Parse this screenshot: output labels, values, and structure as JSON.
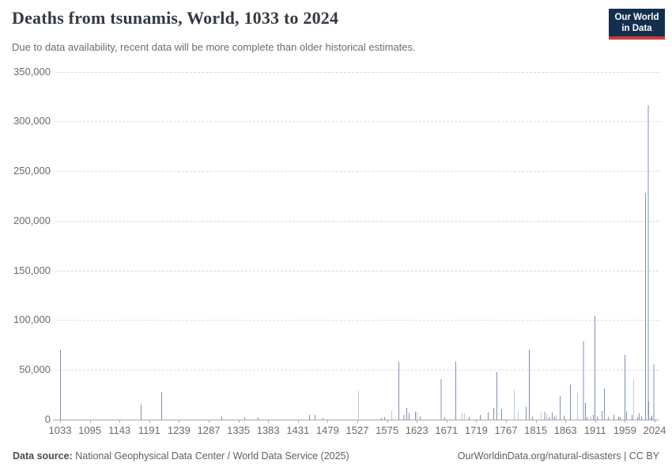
{
  "header": {
    "title": "Deaths from tsunamis, World, 1033 to 2024",
    "subtitle": "Due to data availability, recent data will be more complete than older historical estimates.",
    "logo_line1": "Our World",
    "logo_line2": "in Data"
  },
  "footer": {
    "source_label": "Data source:",
    "source_rest": "National Geophysical Data Center / World Data Service (2025)",
    "credit": "OurWorldinData.org/natural-disasters | CC BY"
  },
  "colors": {
    "spike_dark": "#7b91b2",
    "spike_light": "#bdc9dc",
    "logo_bg": "#12304e",
    "logo_red": "#cf3c3c",
    "grid": "#dcdcdc",
    "axis": "#a7a7a7",
    "label_gray": "#6b6b6b"
  },
  "chart_data": {
    "type": "bar",
    "title": "Deaths from tsunamis, World, 1033 to 2024",
    "subtitle": "Due to data availability, recent data will be more complete than older historical estimates.",
    "xlabel": "",
    "ylabel": "",
    "ylim": [
      0,
      350000
    ],
    "grid": "horizontal-dashed",
    "legend": "none",
    "y_ticks": [
      {
        "value": 0,
        "label": "0"
      },
      {
        "value": 50000,
        "label": "50,000"
      },
      {
        "value": 100000,
        "label": "100,000"
      },
      {
        "value": 150000,
        "label": "150,000"
      },
      {
        "value": 200000,
        "label": "200,000"
      },
      {
        "value": 250000,
        "label": "250,000"
      },
      {
        "value": 300000,
        "label": "300,000"
      },
      {
        "value": 350000,
        "label": "350,000"
      }
    ],
    "x_ticks": [
      1033,
      1095,
      1143,
      1191,
      1239,
      1287,
      1335,
      1383,
      1431,
      1479,
      1527,
      1575,
      1623,
      1671,
      1719,
      1767,
      1815,
      1863,
      1911,
      1959,
      2024
    ],
    "series": [
      {
        "year": 1033,
        "deaths": 70000,
        "tone": "dark",
        "w": 1
      },
      {
        "year": 1178,
        "deaths": 15000,
        "tone": "dark",
        "w": 1
      },
      {
        "year": 1211,
        "deaths": 28000,
        "tone": "dark",
        "w": 1
      },
      {
        "year": 1308,
        "deaths": 3000,
        "tone": "dark",
        "w": 1
      },
      {
        "year": 1345,
        "deaths": 2600,
        "tone": "dark",
        "w": 1
      },
      {
        "year": 1367,
        "deaths": 2000,
        "tone": "dark",
        "w": 1
      },
      {
        "year": 1450,
        "deaths": 5000,
        "tone": "dark",
        "w": 1
      },
      {
        "year": 1459,
        "deaths": 4500,
        "tone": "dark",
        "w": 1
      },
      {
        "year": 1471,
        "deaths": 1500,
        "tone": "dark",
        "w": 1
      },
      {
        "year": 1529,
        "deaths": 29000,
        "tone": "light",
        "w": 1
      },
      {
        "year": 1566,
        "deaths": 1500,
        "tone": "dark",
        "w": 1
      },
      {
        "year": 1571,
        "deaths": 2000,
        "tone": "dark",
        "w": 1
      },
      {
        "year": 1582,
        "deaths": 9000,
        "tone": "light",
        "w": 1
      },
      {
        "year": 1594,
        "deaths": 58000,
        "tone": "dark",
        "w": 1
      },
      {
        "year": 1602,
        "deaths": 5000,
        "tone": "light",
        "w": 2
      },
      {
        "year": 1607,
        "deaths": 12000,
        "tone": "dark",
        "w": 1
      },
      {
        "year": 1610,
        "deaths": 6600,
        "tone": "dark",
        "w": 1
      },
      {
        "year": 1621,
        "deaths": 8000,
        "tone": "dark",
        "w": 1
      },
      {
        "year": 1624,
        "deaths": 8000,
        "tone": "light",
        "w": 1
      },
      {
        "year": 1628,
        "deaths": 3200,
        "tone": "dark",
        "w": 1
      },
      {
        "year": 1662,
        "deaths": 41000,
        "tone": "light",
        "w": 2
      },
      {
        "year": 1668,
        "deaths": 2000,
        "tone": "dark",
        "w": 1
      },
      {
        "year": 1686,
        "deaths": 58000,
        "tone": "dark",
        "w": 1
      },
      {
        "year": 1696,
        "deaths": 6000,
        "tone": "light",
        "w": 1
      },
      {
        "year": 1700,
        "deaths": 6000,
        "tone": "light",
        "w": 1
      },
      {
        "year": 1708,
        "deaths": 2000,
        "tone": "dark",
        "w": 1
      },
      {
        "year": 1726,
        "deaths": 5000,
        "tone": "dark",
        "w": 1
      },
      {
        "year": 1738,
        "deaths": 7000,
        "tone": "dark",
        "w": 1
      },
      {
        "year": 1747,
        "deaths": 12000,
        "tone": "dark",
        "w": 1
      },
      {
        "year": 1752,
        "deaths": 48000,
        "tone": "dark",
        "w": 1
      },
      {
        "year": 1760,
        "deaths": 10000,
        "tone": "dark",
        "w": 1
      },
      {
        "year": 1780,
        "deaths": 30000,
        "tone": "light",
        "w": 1
      },
      {
        "year": 1787,
        "deaths": 8000,
        "tone": "light",
        "w": 1
      },
      {
        "year": 1799,
        "deaths": 13000,
        "tone": "dark",
        "w": 1
      },
      {
        "year": 1805,
        "deaths": 70000,
        "tone": "dark",
        "w": 1
      },
      {
        "year": 1810,
        "deaths": 3000,
        "tone": "dark",
        "w": 1
      },
      {
        "year": 1824,
        "deaths": 7000,
        "tone": "light",
        "w": 1
      },
      {
        "year": 1829,
        "deaths": 8000,
        "tone": "light",
        "w": 2
      },
      {
        "year": 1833,
        "deaths": 6000,
        "tone": "light",
        "w": 1
      },
      {
        "year": 1837,
        "deaths": 2500,
        "tone": "dark",
        "w": 1
      },
      {
        "year": 1842,
        "deaths": 7500,
        "tone": "dark",
        "w": 1
      },
      {
        "year": 1845,
        "deaths": 3000,
        "tone": "dark",
        "w": 1
      },
      {
        "year": 1848,
        "deaths": 5000,
        "tone": "light",
        "w": 1
      },
      {
        "year": 1854,
        "deaths": 24000,
        "tone": "dark",
        "w": 1
      },
      {
        "year": 1861,
        "deaths": 4000,
        "tone": "dark",
        "w": 1
      },
      {
        "year": 1871,
        "deaths": 35000,
        "tone": "dark",
        "w": 1
      },
      {
        "year": 1883,
        "deaths": 26000,
        "tone": "light",
        "w": 1
      },
      {
        "year": 1892,
        "deaths": 79000,
        "tone": "light",
        "w": 2
      },
      {
        "year": 1895,
        "deaths": 17000,
        "tone": "dark",
        "w": 1
      },
      {
        "year": 1898,
        "deaths": 2000,
        "tone": "dark",
        "w": 1
      },
      {
        "year": 1904,
        "deaths": 3000,
        "tone": "light",
        "w": 1
      },
      {
        "year": 1908,
        "deaths": 5000,
        "tone": "dark",
        "w": 1
      },
      {
        "year": 1910,
        "deaths": 104000,
        "tone": "dark",
        "w": 1
      },
      {
        "year": 1915,
        "deaths": 3000,
        "tone": "dark",
        "w": 1
      },
      {
        "year": 1922,
        "deaths": 9000,
        "tone": "dark",
        "w": 1
      },
      {
        "year": 1926,
        "deaths": 31000,
        "tone": "dark",
        "w": 1
      },
      {
        "year": 1932,
        "deaths": 2000,
        "tone": "dark",
        "w": 1
      },
      {
        "year": 1941,
        "deaths": 5000,
        "tone": "dark",
        "w": 1
      },
      {
        "year": 1949,
        "deaths": 3000,
        "tone": "dark",
        "w": 1
      },
      {
        "year": 1951,
        "deaths": 2000,
        "tone": "dark",
        "w": 1
      },
      {
        "year": 1959,
        "deaths": 65000,
        "tone": "dark",
        "w": 1
      },
      {
        "year": 1962,
        "deaths": 8000,
        "tone": "dark",
        "w": 1
      },
      {
        "year": 1974,
        "deaths": 5000,
        "tone": "dark",
        "w": 1
      },
      {
        "year": 1979,
        "deaths": 41000,
        "tone": "light",
        "w": 1
      },
      {
        "year": 1986,
        "deaths": 2500,
        "tone": "dark",
        "w": 1
      },
      {
        "year": 1991,
        "deaths": 6500,
        "tone": "dark",
        "w": 1
      },
      {
        "year": 1995,
        "deaths": 3000,
        "tone": "dark",
        "w": 1
      },
      {
        "year": 2004,
        "deaths": 227899,
        "tone": "dark",
        "w": 1
      },
      {
        "year": 2010,
        "deaths": 316000,
        "tone": "light",
        "w": 2
      },
      {
        "year": 2011,
        "deaths": 18400,
        "tone": "dark",
        "w": 1
      },
      {
        "year": 2017,
        "deaths": 1200,
        "tone": "dark",
        "w": 1
      },
      {
        "year": 2018,
        "deaths": 4300,
        "tone": "dark",
        "w": 1
      },
      {
        "year": 2023,
        "deaths": 56000,
        "tone": "light",
        "w": 2
      }
    ]
  }
}
